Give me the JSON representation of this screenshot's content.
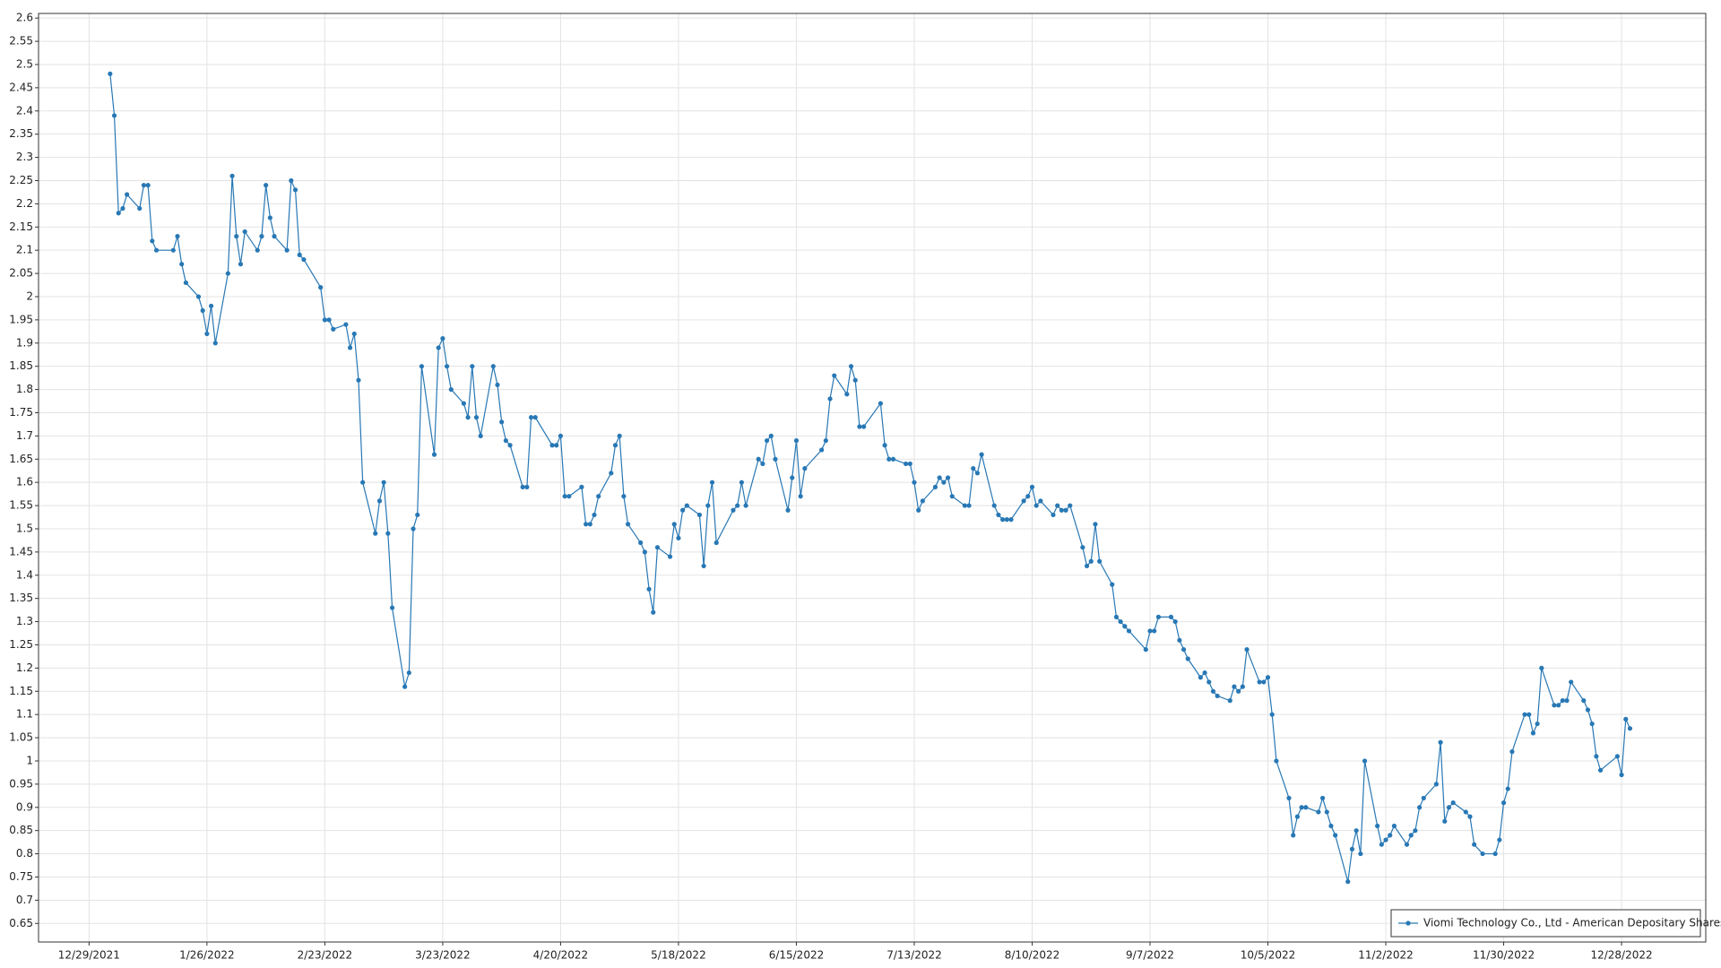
{
  "chart_data": {
    "type": "line",
    "x": [
      "1/3/2022",
      "1/4/2022",
      "1/5/2022",
      "1/6/2022",
      "1/7/2022",
      "1/10/2022",
      "1/11/2022",
      "1/12/2022",
      "1/13/2022",
      "1/14/2022",
      "1/18/2022",
      "1/19/2022",
      "1/20/2022",
      "1/21/2022",
      "1/24/2022",
      "1/25/2022",
      "1/26/2022",
      "1/27/2022",
      "1/28/2022",
      "1/31/2022",
      "2/1/2022",
      "2/2/2022",
      "2/3/2022",
      "2/4/2022",
      "2/7/2022",
      "2/8/2022",
      "2/9/2022",
      "2/10/2022",
      "2/11/2022",
      "2/14/2022",
      "2/15/2022",
      "2/16/2022",
      "2/17/2022",
      "2/18/2022",
      "2/22/2022",
      "2/23/2022",
      "2/24/2022",
      "2/25/2022",
      "2/28/2022",
      "3/1/2022",
      "3/2/2022",
      "3/3/2022",
      "3/4/2022",
      "3/7/2022",
      "3/8/2022",
      "3/9/2022",
      "3/10/2022",
      "3/11/2022",
      "3/14/2022",
      "3/15/2022",
      "3/16/2022",
      "3/17/2022",
      "3/18/2022",
      "3/21/2022",
      "3/22/2022",
      "3/23/2022",
      "3/24/2022",
      "3/25/2022",
      "3/28/2022",
      "3/29/2022",
      "3/30/2022",
      "3/31/2022",
      "4/1/2022",
      "4/4/2022",
      "4/5/2022",
      "4/6/2022",
      "4/7/2022",
      "4/8/2022",
      "4/11/2022",
      "4/12/2022",
      "4/13/2022",
      "4/14/2022",
      "4/18/2022",
      "4/19/2022",
      "4/20/2022",
      "4/21/2022",
      "4/22/2022",
      "4/25/2022",
      "4/26/2022",
      "4/27/2022",
      "4/28/2022",
      "4/29/2022",
      "5/2/2022",
      "5/3/2022",
      "5/4/2022",
      "5/5/2022",
      "5/6/2022",
      "5/9/2022",
      "5/10/2022",
      "5/11/2022",
      "5/12/2022",
      "5/13/2022",
      "5/16/2022",
      "5/17/2022",
      "5/18/2022",
      "5/19/2022",
      "5/20/2022",
      "5/23/2022",
      "5/24/2022",
      "5/25/2022",
      "5/26/2022",
      "5/27/2022",
      "5/31/2022",
      "6/1/2022",
      "6/2/2022",
      "6/3/2022",
      "6/6/2022",
      "6/7/2022",
      "6/8/2022",
      "6/9/2022",
      "6/10/2022",
      "6/13/2022",
      "6/14/2022",
      "6/15/2022",
      "6/16/2022",
      "6/17/2022",
      "6/21/2022",
      "6/22/2022",
      "6/23/2022",
      "6/24/2022",
      "6/27/2022",
      "6/28/2022",
      "6/29/2022",
      "6/30/2022",
      "7/1/2022",
      "7/5/2022",
      "7/6/2022",
      "7/7/2022",
      "7/8/2022",
      "7/11/2022",
      "7/12/2022",
      "7/13/2022",
      "7/14/2022",
      "7/15/2022",
      "7/18/2022",
      "7/19/2022",
      "7/20/2022",
      "7/21/2022",
      "7/22/2022",
      "7/25/2022",
      "7/26/2022",
      "7/27/2022",
      "7/28/2022",
      "7/29/2022",
      "8/1/2022",
      "8/2/2022",
      "8/3/2022",
      "8/4/2022",
      "8/5/2022",
      "8/8/2022",
      "8/9/2022",
      "8/10/2022",
      "8/11/2022",
      "8/12/2022",
      "8/15/2022",
      "8/16/2022",
      "8/17/2022",
      "8/18/2022",
      "8/19/2022",
      "8/22/2022",
      "8/23/2022",
      "8/24/2022",
      "8/25/2022",
      "8/26/2022",
      "8/29/2022",
      "8/30/2022",
      "8/31/2022",
      "9/1/2022",
      "9/2/2022",
      "9/6/2022",
      "9/7/2022",
      "9/8/2022",
      "9/9/2022",
      "9/12/2022",
      "9/13/2022",
      "9/14/2022",
      "9/15/2022",
      "9/16/2022",
      "9/19/2022",
      "9/20/2022",
      "9/21/2022",
      "9/22/2022",
      "9/23/2022",
      "9/26/2022",
      "9/27/2022",
      "9/28/2022",
      "9/29/2022",
      "9/30/2022",
      "10/3/2022",
      "10/4/2022",
      "10/5/2022",
      "10/6/2022",
      "10/7/2022",
      "10/10/2022",
      "10/11/2022",
      "10/12/2022",
      "10/13/2022",
      "10/14/2022",
      "10/17/2022",
      "10/18/2022",
      "10/19/2022",
      "10/20/2022",
      "10/21/2022",
      "10/24/2022",
      "10/25/2022",
      "10/26/2022",
      "10/27/2022",
      "10/28/2022",
      "10/31/2022",
      "11/1/2022",
      "11/2/2022",
      "11/3/2022",
      "11/4/2022",
      "11/7/2022",
      "11/8/2022",
      "11/9/2022",
      "11/10/2022",
      "11/11/2022",
      "11/14/2022",
      "11/15/2022",
      "11/16/2022",
      "11/17/2022",
      "11/18/2022",
      "11/21/2022",
      "11/22/2022",
      "11/23/2022",
      "11/25/2022",
      "11/28/2022",
      "11/29/2022",
      "11/30/2022",
      "12/1/2022",
      "12/2/2022",
      "12/5/2022",
      "12/6/2022",
      "12/7/2022",
      "12/8/2022",
      "12/9/2022",
      "12/12/2022",
      "12/13/2022",
      "12/14/2022",
      "12/15/2022",
      "12/16/2022",
      "12/19/2022",
      "12/20/2022",
      "12/21/2022",
      "12/22/2022",
      "12/23/2022",
      "12/27/2022",
      "12/28/2022",
      "12/29/2022",
      "12/30/2022"
    ],
    "series": [
      {
        "name": "Viomi Technology Co., Ltd - American Depositary Shares",
        "color": "#2878b5",
        "values": [
          2.48,
          2.39,
          2.18,
          2.19,
          2.22,
          2.19,
          2.24,
          2.24,
          2.12,
          2.1,
          2.1,
          2.13,
          2.07,
          2.03,
          2.0,
          1.97,
          1.92,
          1.98,
          1.9,
          2.05,
          2.26,
          2.13,
          2.07,
          2.14,
          2.1,
          2.13,
          2.24,
          2.17,
          2.13,
          2.1,
          2.25,
          2.23,
          2.09,
          2.08,
          2.02,
          1.95,
          1.95,
          1.93,
          1.94,
          1.89,
          1.92,
          1.82,
          1.6,
          1.49,
          1.56,
          1.6,
          1.49,
          1.33,
          1.16,
          1.19,
          1.5,
          1.53,
          1.85,
          1.66,
          1.89,
          1.91,
          1.85,
          1.8,
          1.77,
          1.74,
          1.85,
          1.74,
          1.7,
          1.85,
          1.81,
          1.73,
          1.69,
          1.68,
          1.59,
          1.59,
          1.74,
          1.74,
          1.68,
          1.68,
          1.7,
          1.57,
          1.57,
          1.59,
          1.51,
          1.51,
          1.53,
          1.57,
          1.62,
          1.68,
          1.7,
          1.57,
          1.51,
          1.47,
          1.45,
          1.37,
          1.32,
          1.46,
          1.44,
          1.51,
          1.48,
          1.54,
          1.55,
          1.53,
          1.42,
          1.55,
          1.6,
          1.47,
          1.54,
          1.55,
          1.6,
          1.55,
          1.65,
          1.64,
          1.69,
          1.7,
          1.65,
          1.54,
          1.61,
          1.69,
          1.57,
          1.63,
          1.67,
          1.69,
          1.78,
          1.83,
          1.79,
          1.85,
          1.82,
          1.72,
          1.72,
          1.77,
          1.68,
          1.65,
          1.65,
          1.64,
          1.64,
          1.6,
          1.54,
          1.56,
          1.59,
          1.61,
          1.6,
          1.61,
          1.57,
          1.55,
          1.55,
          1.63,
          1.62,
          1.66,
          1.55,
          1.53,
          1.52,
          1.52,
          1.52,
          1.56,
          1.57,
          1.59,
          1.55,
          1.56,
          1.53,
          1.55,
          1.54,
          1.54,
          1.55,
          1.46,
          1.42,
          1.43,
          1.51,
          1.43,
          1.38,
          1.31,
          1.3,
          1.29,
          1.28,
          1.24,
          1.28,
          1.28,
          1.31,
          1.31,
          1.3,
          1.26,
          1.24,
          1.22,
          1.18,
          1.19,
          1.17,
          1.15,
          1.14,
          1.13,
          1.16,
          1.15,
          1.16,
          1.24,
          1.17,
          1.17,
          1.18,
          1.1,
          1.0,
          0.92,
          0.84,
          0.88,
          0.9,
          0.9,
          0.89,
          0.92,
          0.89,
          0.86,
          0.84,
          0.74,
          0.81,
          0.85,
          0.8,
          1.0,
          0.86,
          0.82,
          0.83,
          0.84,
          0.86,
          0.82,
          0.84,
          0.85,
          0.9,
          0.92,
          0.95,
          1.04,
          0.87,
          0.9,
          0.91,
          0.89,
          0.88,
          0.82,
          0.8,
          0.8,
          0.83,
          0.91,
          0.94,
          1.02,
          1.1,
          1.1,
          1.06,
          1.08,
          1.2,
          1.12,
          1.12,
          1.13,
          1.13,
          1.17,
          1.13,
          1.11,
          1.08,
          1.01,
          0.98,
          1.01,
          0.97,
          1.09,
          1.07
        ]
      }
    ],
    "xlim": [
      "12/17/2021",
      "1/17/2023"
    ],
    "xticks": [
      "12/29/2021",
      "1/26/2022",
      "2/23/2022",
      "3/23/2022",
      "4/20/2022",
      "5/18/2022",
      "6/15/2022",
      "7/13/2022",
      "8/10/2022",
      "9/7/2022",
      "10/5/2022",
      "11/2/2022",
      "11/30/2022",
      "12/28/2022"
    ],
    "ylim": [
      0.61,
      2.61
    ],
    "yticks": [
      0.65,
      0.7,
      0.75,
      0.8,
      0.85,
      0.9,
      0.95,
      1,
      1.05,
      1.1,
      1.15,
      1.2,
      1.25,
      1.3,
      1.35,
      1.4,
      1.45,
      1.5,
      1.55,
      1.6,
      1.65,
      1.7,
      1.75,
      1.8,
      1.85,
      1.9,
      1.95,
      2,
      2.05,
      2.1,
      2.15,
      2.2,
      2.25,
      2.3,
      2.35,
      2.4,
      2.45,
      2.5,
      2.55,
      2.6
    ],
    "grid": true,
    "legend": "lower right"
  }
}
